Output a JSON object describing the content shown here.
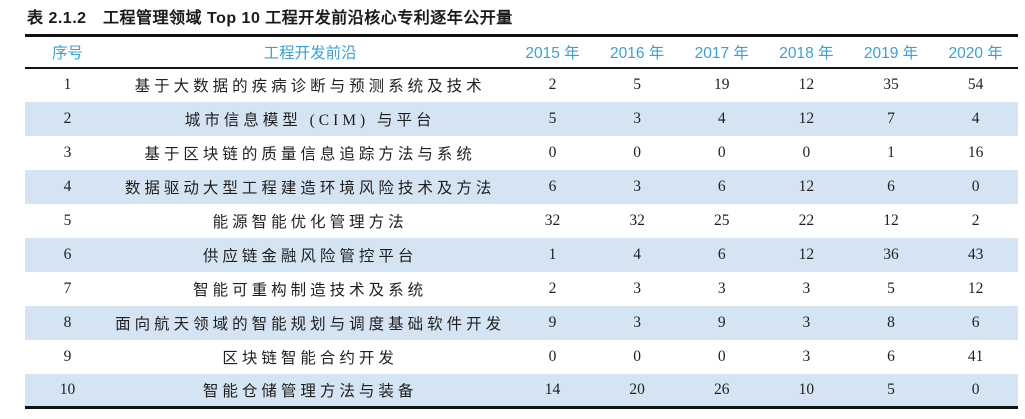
{
  "title": "表 2.1.2　工程管理领域 Top 10 工程开发前沿核心专利逐年公开量",
  "colors": {
    "header_text": "#3aa0d9",
    "row_alt_bg": "#d5e4f2",
    "rule": "#111111"
  },
  "table": {
    "headers": [
      "序号",
      "工程开发前沿",
      "2015 年",
      "2016 年",
      "2017 年",
      "2018 年",
      "2019 年",
      "2020 年"
    ],
    "rows": [
      {
        "rank": "1",
        "frontier": "基于大数据的疾病诊断与预测系统及技术",
        "values": [
          "2",
          "5",
          "19",
          "12",
          "35",
          "54"
        ]
      },
      {
        "rank": "2",
        "frontier": "城市信息模型 (CIM) 与平台",
        "values": [
          "5",
          "3",
          "4",
          "12",
          "7",
          "4"
        ]
      },
      {
        "rank": "3",
        "frontier": "基于区块链的质量信息追踪方法与系统",
        "values": [
          "0",
          "0",
          "0",
          "0",
          "1",
          "16"
        ]
      },
      {
        "rank": "4",
        "frontier": "数据驱动大型工程建造环境风险技术及方法",
        "values": [
          "6",
          "3",
          "6",
          "12",
          "6",
          "0"
        ]
      },
      {
        "rank": "5",
        "frontier": "能源智能优化管理方法",
        "values": [
          "32",
          "32",
          "25",
          "22",
          "12",
          "2"
        ]
      },
      {
        "rank": "6",
        "frontier": "供应链金融风险管控平台",
        "values": [
          "1",
          "4",
          "6",
          "12",
          "36",
          "43"
        ]
      },
      {
        "rank": "7",
        "frontier": "智能可重构制造技术及系统",
        "values": [
          "2",
          "3",
          "3",
          "3",
          "5",
          "12"
        ]
      },
      {
        "rank": "8",
        "frontier": "面向航天领域的智能规划与调度基础软件开发",
        "values": [
          "9",
          "3",
          "9",
          "3",
          "8",
          "6"
        ]
      },
      {
        "rank": "9",
        "frontier": "区块链智能合约开发",
        "values": [
          "0",
          "0",
          "0",
          "3",
          "6",
          "41"
        ]
      },
      {
        "rank": "10",
        "frontier": "智能仓储管理方法与装备",
        "values": [
          "14",
          "20",
          "26",
          "10",
          "5",
          "0"
        ]
      }
    ]
  }
}
